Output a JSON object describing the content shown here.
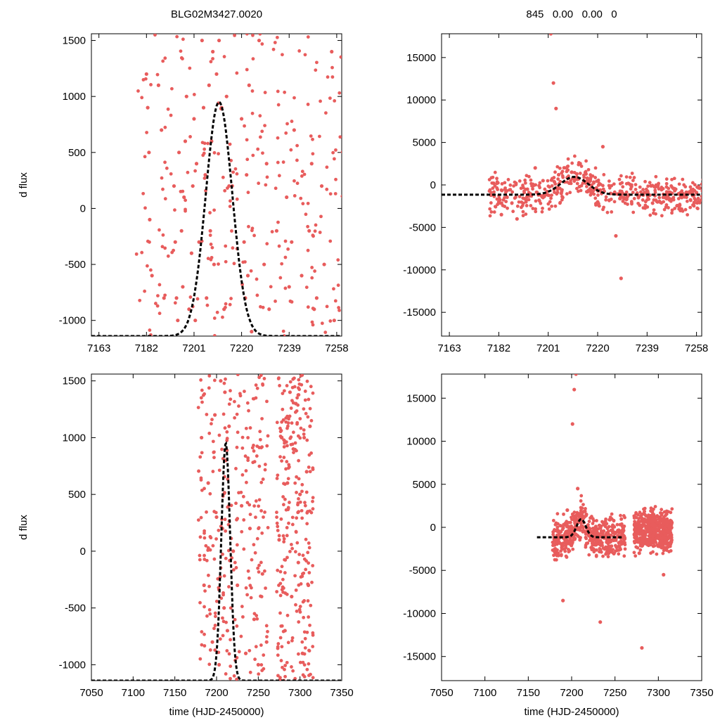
{
  "figure": {
    "title_left": "BLG02M3427.0020",
    "title_right": "845   0.00   0.00   0"
  },
  "chart_data": [
    {
      "id": "panel-top-left",
      "type": "scatter",
      "title": "BLG02M3427.0020",
      "xlabel": "",
      "ylabel": "d flux",
      "xlim": [
        7160,
        7260
      ],
      "ylim": [
        -1140,
        1560
      ],
      "xticks": [
        7163,
        7182,
        7201,
        7220,
        7239,
        7258
      ],
      "yticks": [
        -1000,
        -500,
        0,
        500,
        1000,
        1500
      ],
      "point_color": "#e85c5c",
      "series": [
        {
          "name": "data",
          "x": [
            7182,
            7182.5,
            7183,
            7183.3,
            7184.2,
            7186.8,
            7188,
            7189,
            7193,
            7193.5,
            7194,
            7194.5,
            7195,
            7196,
            7196.5,
            7197,
            7197.5,
            7198,
            7199,
            7200,
            7200.5,
            7201,
            7201.5,
            7202,
            7203,
            7204.2,
            7204.8,
            7205.5,
            7206,
            7207,
            7207.5,
            7208,
            7208.5,
            7209,
            7210,
            7211,
            7212,
            7213,
            7214,
            7215,
            7220,
            7221,
            7221.5,
            7222,
            7222.5,
            7223,
            7224,
            7227,
            7229,
            7230,
            7231,
            7234,
            7238,
            7239,
            7240,
            7241,
            7244,
            7247,
            7248,
            7249,
            7250,
            7252,
            7253,
            7256,
            7257
          ],
          "y": [
            1200,
            900,
            500,
            -100,
            -600,
            1100,
            700,
            -800,
            200,
            -300,
            -800,
            -1000,
            500,
            -200,
            -700,
            100,
            600,
            1000,
            -900,
            -400,
            200,
            800,
            -1000,
            400,
            -300,
            1500,
            900,
            300,
            -800,
            1100,
            -200,
            600,
            1400,
            -500,
            1200,
            1500,
            900,
            -900,
            1000,
            200,
            800,
            -300,
            -800,
            300,
            -600,
            1100,
            -1100,
            1500,
            -500,
            400,
            -900,
            -200,
            100,
            -700,
            -300,
            700,
            -600,
            -200,
            400,
            -900,
            -800,
            200,
            -500,
            1400,
            -1000
          ]
        },
        {
          "name": "fit",
          "style": "dashed",
          "color": "#000000",
          "model": "gaussian",
          "baseline": -1140,
          "peak": 950,
          "t0": 7211,
          "sigma": 5.3
        }
      ]
    },
    {
      "id": "panel-top-right",
      "type": "scatter",
      "title": "845   0.00   0.00   0",
      "xlabel": "",
      "ylabel": "",
      "xlim": [
        7160,
        7260
      ],
      "ylim": [
        -17800,
        17800
      ],
      "xticks": [
        7163,
        7182,
        7201,
        7220,
        7239,
        7258
      ],
      "yticks": [
        -15000,
        -10000,
        -5000,
        0,
        5000,
        10000,
        15000
      ],
      "point_color": "#e85c5c",
      "series": [
        {
          "name": "data",
          "x": [
            7179,
            7180,
            7182,
            7183,
            7185,
            7189,
            7193,
            7196,
            7199,
            7201,
            7202,
            7203,
            7204,
            7205,
            7206,
            7208,
            7210,
            7211,
            7212,
            7213,
            7216,
            7220,
            7221,
            7222,
            7225,
            7227,
            7229,
            7230,
            7233,
            7236,
            7238,
            7240,
            7243,
            7246,
            7248,
            7250,
            7252,
            7254,
            7256,
            7258
          ],
          "y": [
            -1200,
            200,
            -2000,
            -3500,
            -700,
            -4000,
            -500,
            2000,
            500,
            -1200,
            17800,
            12000,
            9000,
            1200,
            -1000,
            2000,
            1500,
            700,
            1300,
            -200,
            800,
            -2000,
            -600,
            4500,
            -1000,
            -6000,
            -11000,
            -1500,
            -200,
            -1300,
            -900,
            -1200,
            -2000,
            -1500,
            -900,
            -500,
            -1400,
            -1100,
            -600,
            -900
          ]
        },
        {
          "name": "fit",
          "style": "dashed",
          "color": "#000000",
          "model": "gaussian",
          "baseline": -1150,
          "peak": 950,
          "t0": 7211,
          "sigma": 5.3
        }
      ]
    },
    {
      "id": "panel-bottom-left",
      "type": "scatter",
      "title": "",
      "xlabel": "time (HJD-2450000)",
      "ylabel": "d flux",
      "xlim": [
        7050,
        7350
      ],
      "ylim": [
        -1140,
        1560
      ],
      "xticks": [
        7050,
        7100,
        7150,
        7200,
        7250,
        7300,
        7350
      ],
      "yticks": [
        -1000,
        -500,
        0,
        500,
        1000,
        1500
      ],
      "point_color": "#e85c5c",
      "series": [
        {
          "name": "data",
          "x": [
            7182,
            7185,
            7190,
            7195,
            7198,
            7200,
            7203,
            7205,
            7207,
            7209,
            7210,
            7211,
            7213,
            7215,
            7220,
            7225,
            7230,
            7235,
            7240,
            7245,
            7250,
            7255,
            7260,
            7275,
            7278,
            7282,
            7285,
            7288,
            7290,
            7292,
            7295,
            7298,
            7300,
            7303,
            7305,
            7308,
            7310,
            7312
          ],
          "y": [
            1000,
            -300,
            600,
            -800,
            1200,
            300,
            -1000,
            1500,
            200,
            -500,
            1400,
            800,
            -700,
            1100,
            0,
            -300,
            400,
            -900,
            200,
            -600,
            -1000,
            -200,
            -800,
            100,
            1000,
            -700,
            600,
            1400,
            -400,
            900,
            1300,
            -100,
            500,
            -900,
            1000,
            700,
            -300,
            1100
          ]
        },
        {
          "name": "fit",
          "style": "dashed",
          "color": "#000000",
          "model": "gaussian",
          "baseline": -1140,
          "peak": 950,
          "t0": 7211,
          "sigma": 5.3
        }
      ]
    },
    {
      "id": "panel-bottom-right",
      "type": "scatter",
      "title": "",
      "xlabel": "time (HJD-2450000)",
      "ylabel": "",
      "xlim": [
        7050,
        7350
      ],
      "ylim": [
        -17800,
        17800
      ],
      "xticks": [
        7050,
        7100,
        7150,
        7200,
        7250,
        7300,
        7350
      ],
      "yticks": [
        -15000,
        -10000,
        -5000,
        0,
        5000,
        10000,
        15000
      ],
      "point_color": "#e85c5c",
      "series": [
        {
          "name": "data",
          "x": [
            7180,
            7183,
            7187,
            7190,
            7195,
            7199,
            7201,
            7203,
            7205,
            7207,
            7210,
            7213,
            7217,
            7220,
            7225,
            7230,
            7233,
            7235,
            7240,
            7245,
            7250,
            7255,
            7275,
            7278,
            7281,
            7283,
            7285,
            7288,
            7290,
            7293,
            7296,
            7300,
            7303,
            7306,
            7310,
            7313
          ],
          "y": [
            -1200,
            -3000,
            200,
            -8500,
            2000,
            -2000,
            12000,
            16000,
            17800,
            4500,
            -1200,
            -500,
            1500,
            -200,
            -2500,
            -1000,
            -11000,
            -1800,
            -900,
            -1500,
            -700,
            -2200,
            -300,
            -3000,
            -14000,
            -1500,
            -700,
            500,
            -600,
            1800,
            -1200,
            200,
            -2000,
            -5500,
            900,
            -300
          ]
        },
        {
          "name": "fit",
          "style": "dashed",
          "color": "#000000",
          "model": "gaussian",
          "baseline": -1150,
          "peak": 950,
          "t0": 7211,
          "sigma": 5.3,
          "xrange": [
            7160,
            7260
          ]
        }
      ]
    }
  ]
}
